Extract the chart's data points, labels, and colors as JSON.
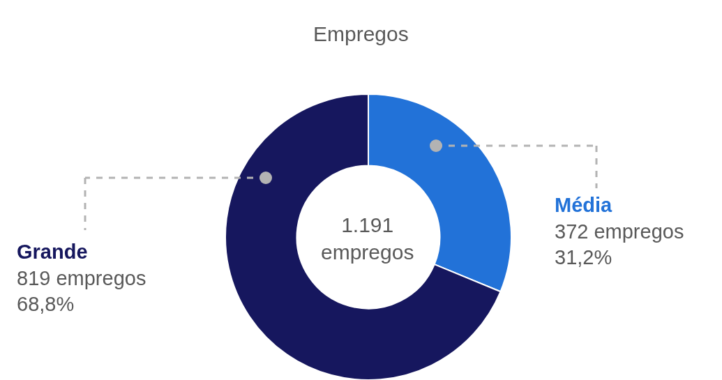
{
  "chart_data": {
    "type": "donut",
    "title": "Empregos",
    "categories": [
      "Média",
      "Grande"
    ],
    "values": [
      372,
      819
    ],
    "colors": [
      "#2272d8",
      "#16175e"
    ],
    "value_labels": [
      "372 empregos\n31,2%",
      "819 empregos\n68,8%"
    ],
    "annotations": [
      "1.191 empregos"
    ],
    "legend": false
  }
}
